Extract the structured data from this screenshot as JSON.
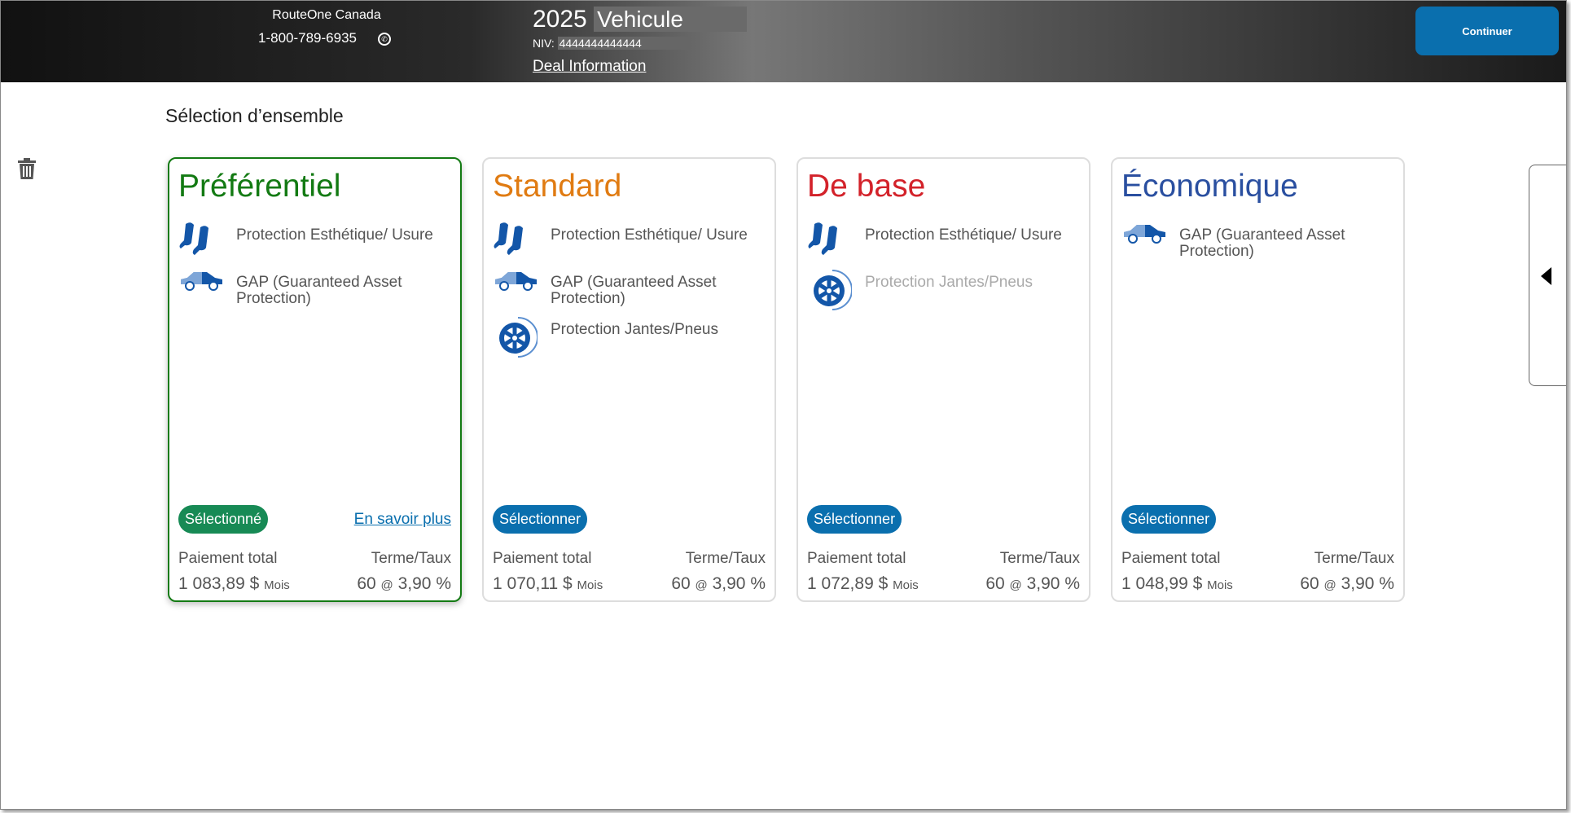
{
  "header": {
    "dealer_name": "RouteOne Canada",
    "phone": "1-800-789-6935",
    "vehicle_year": "2025",
    "vehicle_name": "Vehicule",
    "vin_label": "NIV:",
    "vin": "4444444444444",
    "deal_link": "Deal Information",
    "continue_label": "Continuer"
  },
  "page": {
    "title": "Sélection d’ensemble"
  },
  "colors": {
    "preferentiel": "#137a13",
    "standard": "#e07b12",
    "de_base": "#d3222a",
    "economique": "#2a4fa0",
    "accent": "#0a6fae",
    "selected": "#178a55"
  },
  "cards": [
    {
      "title": "Préférentiel",
      "items": [
        {
          "icon": "seat-icon",
          "label": "Protection Esthétique/ Usure"
        },
        {
          "icon": "car-icon",
          "label": "GAP (Guaranteed Asset Protection)"
        }
      ],
      "button": "Sélectionné",
      "more": "En savoir plus",
      "pay_label": "Paiement total",
      "pay": "1 083,89 $",
      "per": "Mois",
      "term_label": "Terme/Taux",
      "term": "60",
      "at": "@",
      "rate": "3,90 %"
    },
    {
      "title": "Standard",
      "items": [
        {
          "icon": "seat-icon",
          "label": "Protection Esthétique/ Usure"
        },
        {
          "icon": "car-icon",
          "label": "GAP (Guaranteed Asset Protection)"
        },
        {
          "icon": "wheel-icon",
          "label": "Protection Jantes/Pneus"
        }
      ],
      "button": "Sélectionner",
      "pay_label": "Paiement total",
      "pay": "1 070,11 $",
      "per": "Mois",
      "term_label": "Terme/Taux",
      "term": "60",
      "at": "@",
      "rate": "3,90 %"
    },
    {
      "title": "De base",
      "items": [
        {
          "icon": "seat-icon",
          "label": "Protection Esthétique/ Usure"
        },
        {
          "icon": "wheel-icon",
          "label": "Protection Jantes/Pneus",
          "disabled": true
        }
      ],
      "button": "Sélectionner",
      "pay_label": "Paiement total",
      "pay": "1 072,89 $",
      "per": "Mois",
      "term_label": "Terme/Taux",
      "term": "60",
      "at": "@",
      "rate": "3,90 %"
    },
    {
      "title": "Économique",
      "items": [
        {
          "icon": "car-icon",
          "label": "GAP (Guaranteed Asset Protection)"
        }
      ],
      "button": "Sélectionner",
      "pay_label": "Paiement total",
      "pay": "1 048,99 $",
      "per": "Mois",
      "term_label": "Terme/Taux",
      "term": "60",
      "at": "@",
      "rate": "3,90 %"
    }
  ]
}
